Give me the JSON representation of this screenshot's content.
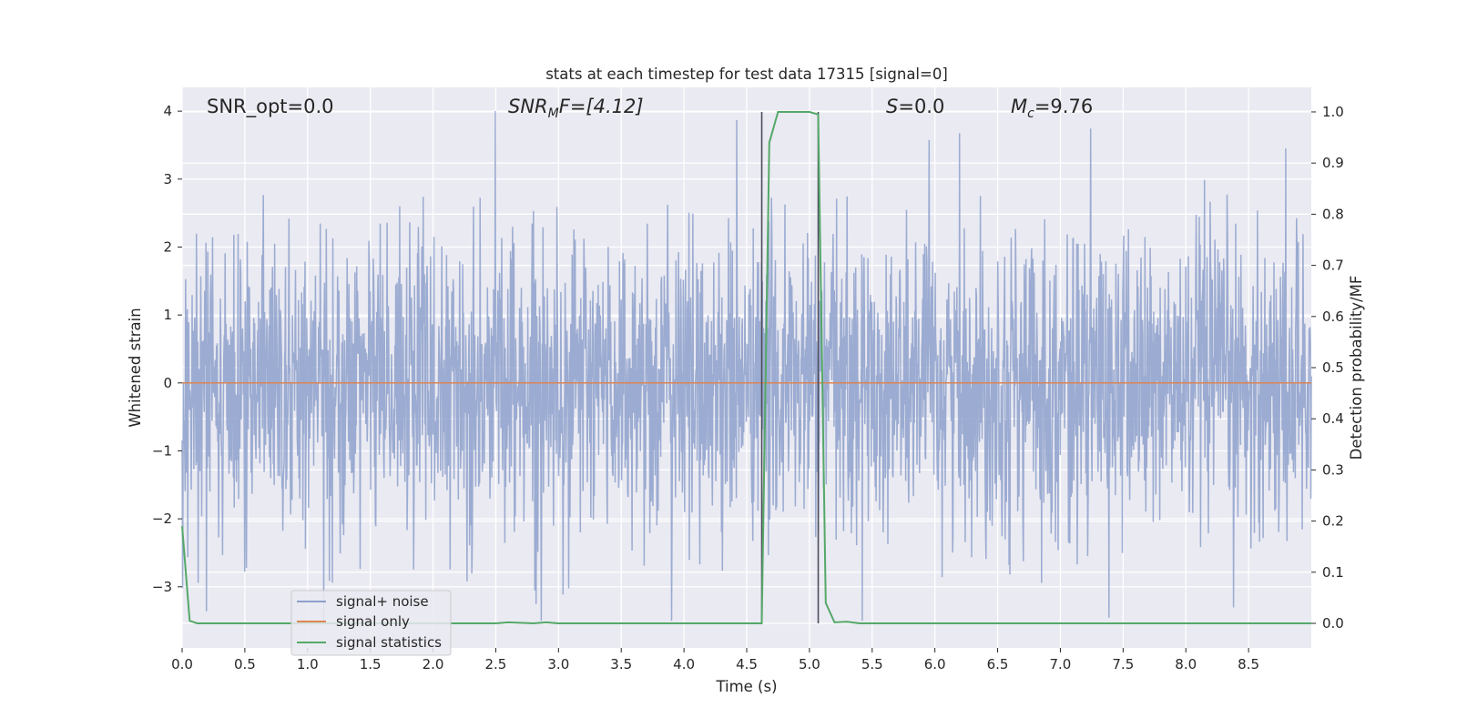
{
  "chart_data": {
    "type": "line",
    "title": "stats at each timestep for test data 17315 [signal=0]",
    "xlabel": "Time (s)",
    "ylabel": "Whitened strain",
    "y2label": "Detection probability/MF",
    "xlim": [
      0,
      9.0
    ],
    "ylim": [
      -3.9,
      4.35
    ],
    "y2lim": [
      -0.048,
      1.048
    ],
    "x_ticks": [
      "0.0",
      "0.5",
      "1.0",
      "1.5",
      "2.0",
      "2.5",
      "3.0",
      "3.5",
      "4.0",
      "4.5",
      "5.0",
      "5.5",
      "6.0",
      "6.5",
      "7.0",
      "7.5",
      "8.0",
      "8.5"
    ],
    "y_ticks": [
      "4",
      "3",
      "2",
      "1",
      "0",
      "−1",
      "−2",
      "−3"
    ],
    "y2_ticks": [
      "1.0",
      "0.9",
      "0.8",
      "0.7",
      "0.6",
      "0.5",
      "0.4",
      "0.3",
      "0.2",
      "0.1",
      "0.0"
    ],
    "grid": true,
    "legend_position": "lower-left",
    "vlines": [
      4.62,
      5.07
    ],
    "annotations": {
      "snr_opt": "SNR_opt=0.0",
      "snr_mf_base": "SNR",
      "snr_mf_sub": "M",
      "snr_mf_rest": "F=[4.12]",
      "s_var": "S",
      "s_rest": "=0.0",
      "mc_base": "M",
      "mc_sub": "c",
      "mc_rest": "=9.76"
    },
    "series": [
      {
        "name": "signal+ noise",
        "color": "#8da0cb",
        "note": "dense whitened noise, roughly within -3.5..4.0",
        "noise_band": [
          -3.5,
          4.0
        ]
      },
      {
        "name": "signal only",
        "color": "#dd8452",
        "values_constant": 0
      },
      {
        "name": "signal statistics",
        "color": "#55a868",
        "axis": "right",
        "x": [
          0.0,
          0.06,
          0.12,
          0.5,
          1.0,
          1.5,
          2.0,
          2.5,
          2.6,
          2.8,
          2.9,
          3.0,
          3.5,
          4.0,
          4.5,
          4.62,
          4.68,
          4.75,
          4.88,
          5.0,
          5.07,
          5.13,
          5.2,
          5.3,
          5.4,
          6.0,
          7.0,
          8.0,
          9.0
        ],
        "values": [
          0.19,
          0.005,
          0.0,
          0.0,
          0.0,
          0.0,
          0.0,
          0.0,
          0.002,
          0.0,
          0.002,
          0.0,
          0.0,
          0.0,
          0.0,
          0.0,
          0.94,
          1.0,
          1.0,
          1.0,
          0.995,
          0.04,
          0.002,
          0.003,
          0.0,
          0.0,
          0.0,
          0.0,
          0.0
        ]
      }
    ]
  }
}
